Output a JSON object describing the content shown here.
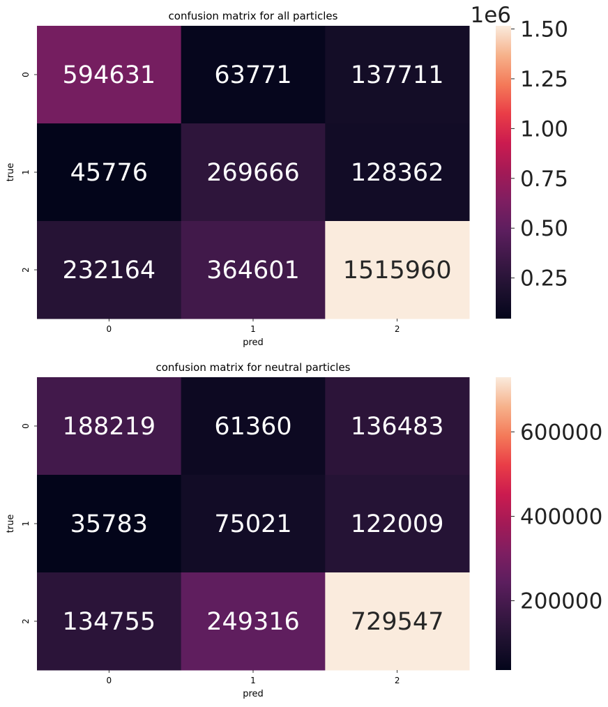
{
  "chart_data": [
    {
      "type": "heatmap",
      "title": "confusion matrix for all particles",
      "xlabel": "pred",
      "ylabel": "true",
      "x_categories": [
        "0",
        "1",
        "2"
      ],
      "y_categories": [
        "0",
        "1",
        "2"
      ],
      "values": [
        [
          594631,
          63771,
          137711
        ],
        [
          45776,
          269666,
          128362
        ],
        [
          232164,
          364601,
          1515960
        ]
      ],
      "colorbar": {
        "range": [
          45776,
          1515960
        ],
        "ticks": [
          250000,
          500000,
          750000,
          1000000,
          1250000,
          1500000
        ],
        "tick_labels": [
          "0.25",
          "0.50",
          "0.75",
          "1.00",
          "1.25",
          "1.50"
        ],
        "exponent_label": "1e6"
      },
      "colormap": "rocket"
    },
    {
      "type": "heatmap",
      "title": "confusion matrix for neutral particles",
      "xlabel": "pred",
      "ylabel": "true",
      "x_categories": [
        "0",
        "1",
        "2"
      ],
      "y_categories": [
        "0",
        "1",
        "2"
      ],
      "values": [
        [
          188219,
          61360,
          136483
        ],
        [
          35783,
          75021,
          122009
        ],
        [
          134755,
          249316,
          729547
        ]
      ],
      "colorbar": {
        "range": [
          35783,
          729547
        ],
        "ticks": [
          200000,
          400000,
          600000
        ],
        "tick_labels": [
          "200000",
          "400000",
          "600000"
        ],
        "exponent_label": ""
      },
      "colormap": "rocket"
    }
  ]
}
